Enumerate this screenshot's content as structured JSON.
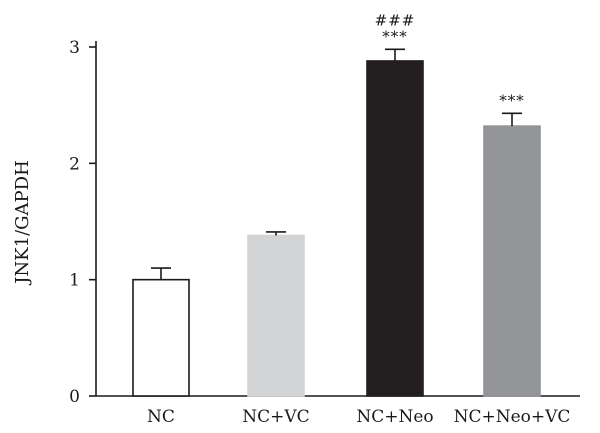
{
  "chart_data": {
    "type": "bar",
    "title": "",
    "xlabel": "",
    "ylabel": "JNK1/GAPDH",
    "ylim": [
      0,
      3
    ],
    "yticks": [
      0,
      1,
      2,
      3
    ],
    "grid": false,
    "categories": [
      "NC",
      "NC+VC",
      "NC+Neo",
      "NC+Neo+VC"
    ],
    "values": [
      1.0,
      1.38,
      2.88,
      2.32
    ],
    "errors": [
      0.1,
      0.03,
      0.1,
      0.11
    ],
    "bar_colors": [
      "#ffffff",
      "#d3d4d6",
      "#231f20",
      "#939598"
    ],
    "annotations": [
      {
        "category": "NC+Neo",
        "lines": [
          "###",
          "***"
        ]
      },
      {
        "category": "NC+Neo+VC",
        "lines": [
          "***"
        ]
      }
    ]
  }
}
